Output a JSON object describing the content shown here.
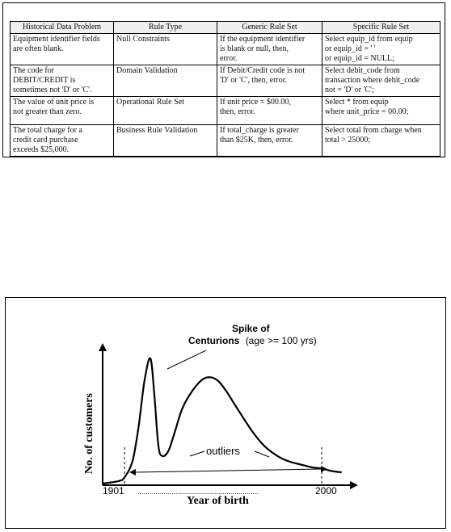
{
  "table": {
    "headers": [
      "Historical Data Problem",
      "Rule Type",
      "Generic Rule Set",
      "Specific Rule Set"
    ],
    "rows": [
      {
        "problem": [
          "Equipment identifier fields",
          "are often blank."
        ],
        "rule_type": [
          "Null Constraints"
        ],
        "generic": [
          "If the equipment identifier",
          "is blank or null, then,",
          "error."
        ],
        "specific": [
          "Select equip_id from equip",
          "or equip_id = ' '",
          "or equip_id = NULL;"
        ]
      },
      {
        "problem": [
          "The code for",
          "DEBIT/CREDIT is",
          "sometimes not 'D' or 'C'."
        ],
        "rule_type": [
          "Domain Validation"
        ],
        "generic": [
          "If Debit/Credit code is not",
          "'D' or 'C', then, error."
        ],
        "specific": [
          "Select debit_code from",
          "transaction where debit_code",
          "not = 'D' or 'C';"
        ]
      },
      {
        "problem": [
          "The value of unit price is",
          "not greater than zero."
        ],
        "rule_type": [
          "Operational Rule Set"
        ],
        "generic": [
          "If unit price = $00.00,",
          "then, error."
        ],
        "specific": [
          "Select * from equip",
          "where unit_price = 00.00;"
        ]
      },
      {
        "problem": [
          "The total charge for a",
          "credit card purchase",
          "exceeds $25,000."
        ],
        "rule_type": [
          "Business Rule Validation"
        ],
        "generic": [
          "If total_charge is greater",
          "than $25K, then, error."
        ],
        "specific": [
          "Select total from charge when",
          "total > 25000;"
        ]
      }
    ]
  },
  "chart_data": {
    "type": "line",
    "xlabel": "Year of birth",
    "ylabel": "No. of customers",
    "x_tick_labels": [
      "1901",
      "2000"
    ],
    "xlim": [
      1890,
      2015
    ],
    "ylim": [
      0,
      100
    ],
    "series": [
      {
        "x": [
          1890,
          1898,
          1901,
          1905,
          1908,
          1911,
          1914,
          1916,
          1918,
          1920,
          1923,
          1926,
          1930,
          1935,
          1940,
          1944,
          1948,
          1952,
          1956,
          1960,
          1965,
          1970,
          1975,
          1980,
          1985,
          1990,
          1995,
          2000,
          2005,
          2010
        ],
        "y": [
          0,
          2,
          5,
          18,
          45,
          82,
          100,
          70,
          30,
          22,
          26,
          40,
          60,
          74,
          83,
          85,
          82,
          74,
          64,
          54,
          42,
          32,
          25,
          20,
          17,
          15,
          13,
          12,
          10,
          9
        ]
      }
    ],
    "annotations": {
      "spike_bold": "Spike of",
      "spike_bold2": "Centurions",
      "spike_note": "(age >= 100 yrs)",
      "outliers": "outliers"
    },
    "dotted_range": "............................................................"
  }
}
